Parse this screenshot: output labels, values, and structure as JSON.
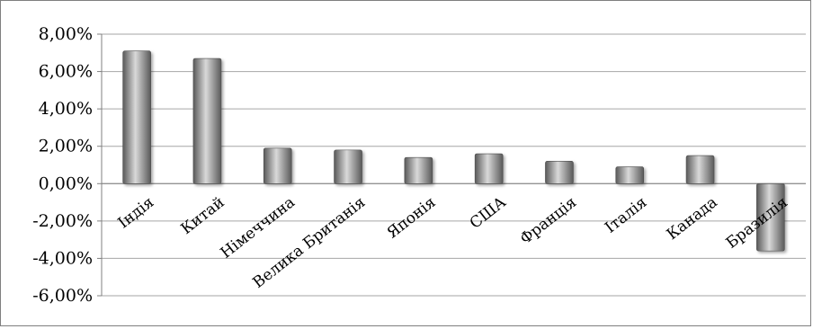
{
  "chart_data": {
    "type": "bar",
    "title": "",
    "xlabel": "",
    "ylabel": "",
    "categories": [
      "Індія",
      "Китай",
      "Німеччина",
      "Велика Британія",
      "Японія",
      "США",
      "Франція",
      "Італія",
      "Канада",
      "Бразилія"
    ],
    "values": [
      7.1,
      6.7,
      1.9,
      1.8,
      1.4,
      1.6,
      1.2,
      0.9,
      1.5,
      -3.6
    ],
    "ylim": [
      -6,
      8
    ],
    "yticks": [
      8,
      6,
      4,
      2,
      0,
      -2,
      -4,
      -6
    ],
    "ytick_labels": [
      "8,00%",
      "6,00%",
      "4,00%",
      "2,00%",
      "0,00%",
      "-2,00%",
      "-4,00%",
      "-6,00%"
    ],
    "grid": true,
    "legend": "none",
    "colors": {
      "bar_light": "#d9d9d9",
      "bar_mid": "#a6a6a6",
      "bar_dark": "#595959",
      "gridline": "#a6a6a6",
      "axis": "#808080"
    }
  }
}
